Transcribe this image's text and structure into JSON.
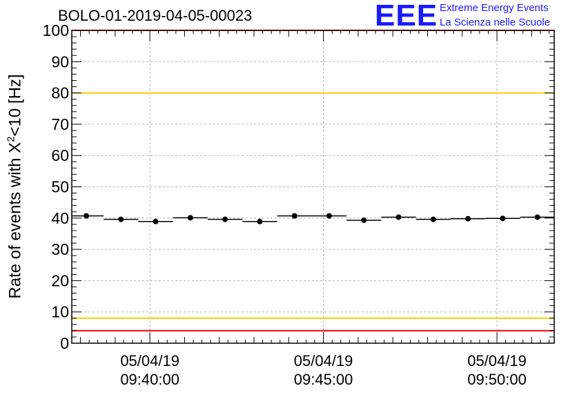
{
  "title": "BOLO-01-2019-04-05-00023",
  "logo": {
    "mark": "EEE",
    "line1": "Extreme Energy Events",
    "line2": "La Scienza nelle Scuole",
    "color": "#1a1aff"
  },
  "chart_data": {
    "type": "scatter",
    "ylabel": {
      "prefix": "Rate of events with X",
      "sup": "2",
      "suffix": "<10 [Hz]"
    },
    "xlabel": "",
    "ylim": [
      0,
      100
    ],
    "yticks": [
      "0",
      "10",
      "20",
      "30",
      "40",
      "50",
      "60",
      "70",
      "80",
      "90",
      "100"
    ],
    "xlim_minutes": [
      37.75,
      51.65
    ],
    "xticks": [
      {
        "min": 40,
        "date": "05/04/19",
        "time": "09:40:00"
      },
      {
        "min": 45,
        "date": "05/04/19",
        "time": "09:45:00"
      },
      {
        "min": 50,
        "date": "05/04/19",
        "time": "09:50:00"
      }
    ],
    "grid": true,
    "series": [
      {
        "x_time": [
          "09:38:10",
          "09:39:10",
          "09:40:10",
          "09:41:10",
          "09:42:10",
          "09:43:10",
          "09:44:10",
          "09:45:10",
          "09:46:10",
          "09:47:10",
          "09:48:10",
          "09:49:10",
          "09:50:10",
          "09:51:10"
        ],
        "y": [
          40.7,
          39.6,
          38.9,
          40.1,
          39.6,
          38.9,
          40.7,
          40.7,
          39.3,
          40.3,
          39.6,
          39.8,
          39.9,
          40.3
        ],
        "bin_halfwidth_min": 0.5
      }
    ],
    "reference_lines": [
      {
        "y": 100,
        "color": "#ff0000"
      },
      {
        "y": 80,
        "color": "#ffcc00"
      },
      {
        "y": 8,
        "color": "#ffcc00"
      },
      {
        "y": 4,
        "color": "#ff0000"
      }
    ]
  }
}
